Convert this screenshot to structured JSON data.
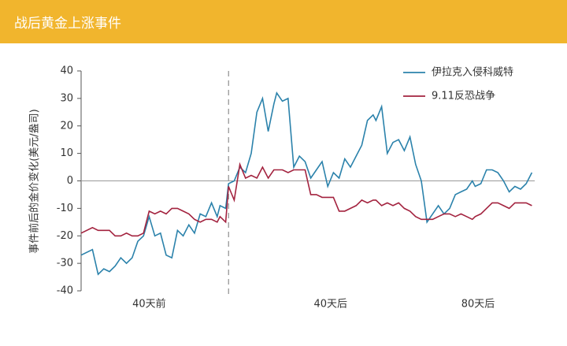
{
  "chart_data": {
    "type": "line",
    "title": "战后黄金上涨事件",
    "y_label": "事件前后的金价变化(美元/盎司)",
    "x": [
      0,
      4,
      6,
      8,
      10,
      12,
      14,
      16,
      18,
      20,
      22,
      24,
      26,
      28,
      30,
      32,
      34,
      36,
      38,
      40,
      42,
      44,
      46,
      48,
      49,
      51,
      52,
      54,
      56,
      58,
      60,
      62,
      64,
      66,
      68,
      69,
      71,
      73,
      75,
      77,
      79,
      81,
      83,
      85,
      87,
      89,
      91,
      93,
      95,
      97,
      99,
      101,
      103,
      104,
      106,
      108,
      110,
      112,
      114,
      116,
      118,
      120,
      122,
      124,
      126,
      128,
      130,
      132,
      134,
      136,
      138,
      139,
      141,
      143,
      145,
      147,
      149,
      151,
      153,
      155,
      157,
      159
    ],
    "series": [
      {
        "name": "伊拉克入侵科威特",
        "color": "#2b82ab",
        "values": [
          -27,
          -25,
          -34,
          -32,
          -33,
          -31,
          -28,
          -30,
          -28,
          -22,
          -20,
          -13,
          -20,
          -19,
          -27,
          -28,
          -18,
          -20,
          -16,
          -19,
          -12,
          -13,
          -8,
          -13,
          -9,
          -10,
          -1,
          0,
          5,
          3,
          10,
          25,
          30,
          18,
          28,
          32,
          29,
          30,
          5,
          9,
          7,
          1,
          4,
          7,
          -2,
          3,
          1,
          8,
          5,
          9,
          13,
          22,
          24,
          22,
          27,
          10,
          14,
          15,
          11,
          16,
          6,
          0,
          -15,
          -12,
          -9,
          -12,
          -10,
          -5,
          -4,
          -3,
          0,
          -2,
          -1,
          4,
          4,
          3,
          0,
          -4,
          -2,
          -3,
          -1,
          3
        ]
      },
      {
        "name": "9.11反恐战争",
        "color": "#a3233f",
        "values": [
          -19,
          -17,
          -18,
          -18,
          -18,
          -20,
          -20,
          -19,
          -20,
          -20,
          -19,
          -11,
          -12,
          -11,
          -12,
          -10,
          -10,
          -11,
          -12,
          -14,
          -15,
          -14,
          -14,
          -15,
          -13,
          -15,
          -2,
          -7,
          6,
          1,
          2,
          1,
          5,
          1,
          4,
          4,
          4,
          3,
          4,
          4,
          4,
          -5,
          -5,
          -6,
          -6,
          -6,
          -11,
          -11,
          -10,
          -9,
          -7,
          -8,
          -7,
          -7,
          -9,
          -8,
          -9,
          -8,
          -10,
          -11,
          -13,
          -14,
          -14,
          -14,
          -13,
          -12,
          -12,
          -13,
          -12,
          -13,
          -14,
          -13,
          -12,
          -10,
          -8,
          -8,
          -9,
          -10,
          -8,
          -8,
          -8,
          -9
        ]
      }
    ],
    "xlim": [
      0,
      160
    ],
    "xticks": [
      {
        "value": 24,
        "label": "40天前"
      },
      {
        "value": 88,
        "label": "40天后"
      },
      {
        "value": 140,
        "label": "80天后"
      }
    ],
    "ylim": [
      -40,
      40
    ],
    "yticks": [
      -40,
      -30,
      -20,
      -10,
      0,
      10,
      20,
      30,
      40
    ],
    "event_x": 52,
    "legend": "upper right"
  }
}
